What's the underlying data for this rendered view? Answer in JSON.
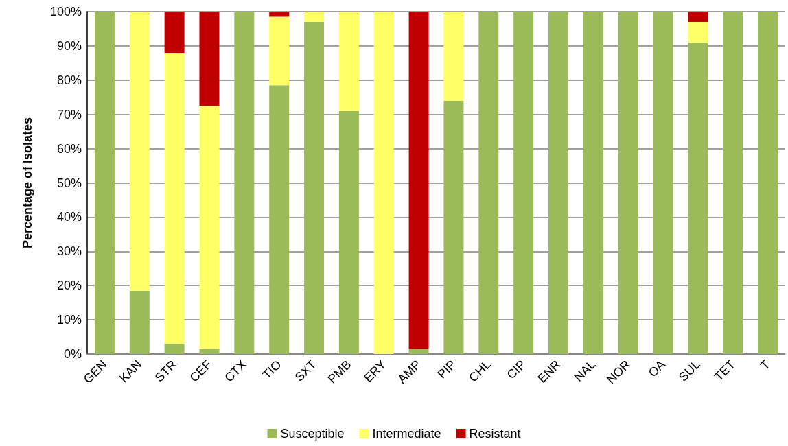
{
  "chart_data": {
    "type": "bar",
    "stacked": true,
    "ylabel": "Percentage of Isolates",
    "categories": [
      "GEN",
      "KAN",
      "STR",
      "CEF",
      "CTX",
      "TIO",
      "SXT",
      "PMB",
      "ERY",
      "AMP",
      "PIP",
      "CHL",
      "CIP",
      "ENR",
      "NAL",
      "NOR",
      "OA",
      "SUL",
      "TET",
      "T"
    ],
    "series": [
      {
        "name": "Susceptible",
        "color": "#9bbb59",
        "values": [
          100,
          18.5,
          3,
          1.5,
          100,
          78.5,
          97,
          71,
          0,
          1.5,
          74,
          100,
          100,
          100,
          100,
          100,
          100,
          91,
          100,
          100
        ]
      },
      {
        "name": "Intermediate",
        "color": "#ffff66",
        "values": [
          0,
          81.5,
          85,
          71,
          0,
          20,
          3,
          29,
          100,
          0,
          26,
          0,
          0,
          0,
          0,
          0,
          0,
          6,
          0,
          0
        ]
      },
      {
        "name": "Resistant",
        "color": "#c00000",
        "values": [
          0,
          0,
          12,
          27.5,
          0,
          1.5,
          0,
          0,
          0,
          98.5,
          0,
          0,
          0,
          0,
          0,
          0,
          0,
          3,
          0,
          0
        ]
      }
    ],
    "ylim": [
      0,
      100
    ],
    "yticks": [
      {
        "value": 0,
        "label": "0%"
      },
      {
        "value": 10,
        "label": "10%"
      },
      {
        "value": 20,
        "label": "20%"
      },
      {
        "value": 30,
        "label": "30%"
      },
      {
        "value": 40,
        "label": "40%"
      },
      {
        "value": 50,
        "label": "50%"
      },
      {
        "value": 60,
        "label": "60%"
      },
      {
        "value": 70,
        "label": "70%"
      },
      {
        "value": 80,
        "label": "80%"
      },
      {
        "value": 90,
        "label": "90%"
      },
      {
        "value": 100,
        "label": "100%"
      }
    ],
    "grid": "y",
    "legend": "bottom"
  }
}
